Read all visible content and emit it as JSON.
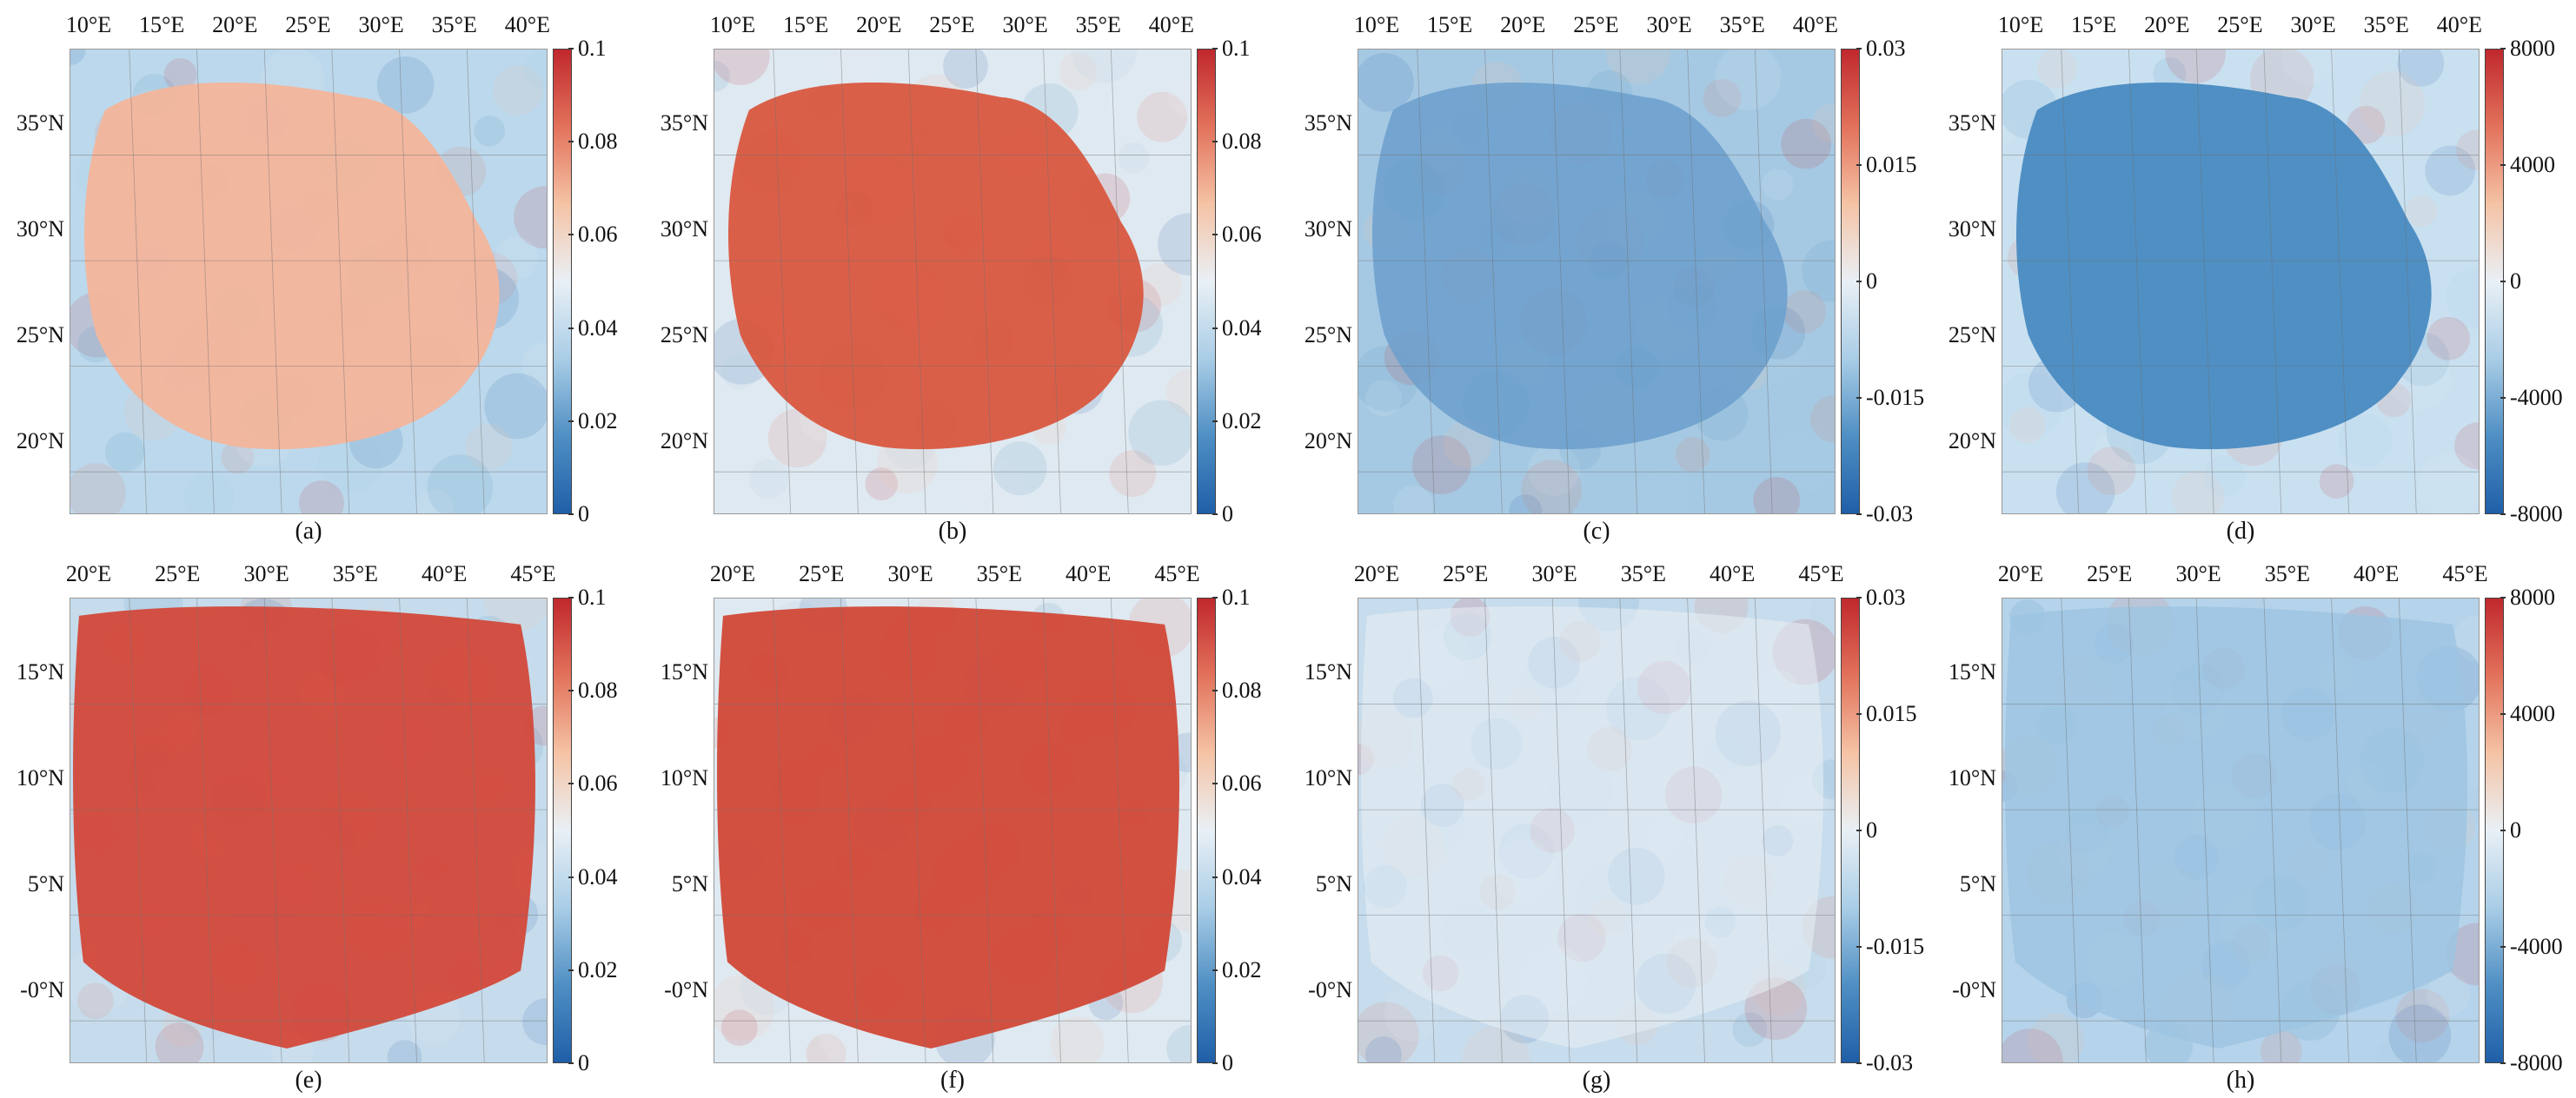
{
  "colormaps": {
    "diverging": [
      "#1f5fa8",
      "#4f8fc4",
      "#a9cde6",
      "#e9f0f6",
      "#f5c3a5",
      "#e2725b",
      "#c0282d"
    ]
  },
  "panels": [
    {
      "caption": "(a)",
      "x_ticks": [
        "10°E",
        "15°E",
        "20°E",
        "25°E",
        "30°E",
        "35°E",
        "40°E"
      ],
      "y_ticks": [
        "35°N",
        "30°N",
        "25°N",
        "20°N"
      ],
      "colorbar": [
        "0.1",
        "0.08",
        "0.06",
        "0.04",
        "0.02",
        "0"
      ],
      "style": {
        "background": "#bcd8ec",
        "blob": "#f3b59b",
        "blob_opacity": 0.95,
        "shape": "sea"
      }
    },
    {
      "caption": "(b)",
      "x_ticks": [
        "10°E",
        "15°E",
        "20°E",
        "25°E",
        "30°E",
        "35°E",
        "40°E"
      ],
      "y_ticks": [
        "35°N",
        "30°N",
        "25°N",
        "20°N"
      ],
      "colorbar": [
        "0.1",
        "0.08",
        "0.06",
        "0.04",
        "0.02",
        "0"
      ],
      "style": {
        "background": "#dfe9f1",
        "blob": "#d9573f",
        "blob_opacity": 0.95,
        "shape": "sea"
      }
    },
    {
      "caption": "(c)",
      "x_ticks": [
        "10°E",
        "15°E",
        "20°E",
        "25°E",
        "30°E",
        "35°E",
        "40°E"
      ],
      "y_ticks": [
        "35°N",
        "30°N",
        "25°N",
        "20°N"
      ],
      "colorbar": [
        "0.03",
        "0.015",
        "0",
        "-0.015",
        "-0.03"
      ],
      "style": {
        "background": "#a6c9e3",
        "blob": "#6b9fcd",
        "blob_opacity": 0.85,
        "shape": "sea"
      }
    },
    {
      "caption": "(d)",
      "x_ticks": [
        "10°E",
        "15°E",
        "20°E",
        "25°E",
        "30°E",
        "35°E",
        "40°E"
      ],
      "y_ticks": [
        "35°N",
        "30°N",
        "25°N",
        "20°N"
      ],
      "colorbar": [
        "8000",
        "4000",
        "0",
        "-4000",
        "-8000"
      ],
      "style": {
        "background": "#c9e0f0",
        "blob": "#4f8fc4",
        "blob_opacity": 1,
        "shape": "sea"
      }
    },
    {
      "caption": "(e)",
      "x_ticks": [
        "20°E",
        "25°E",
        "30°E",
        "35°E",
        "40°E",
        "45°E"
      ],
      "y_ticks": [
        "15°N",
        "10°N",
        "5°N",
        "-0°N"
      ],
      "colorbar": [
        "0.1",
        "0.08",
        "0.06",
        "0.04",
        "0.02",
        "0"
      ],
      "style": {
        "background": "#c6dcec",
        "blob": "#d3483a",
        "blob_opacity": 0.95,
        "shape": "wide"
      }
    },
    {
      "caption": "(f)",
      "x_ticks": [
        "20°E",
        "25°E",
        "30°E",
        "35°E",
        "40°E",
        "45°E"
      ],
      "y_ticks": [
        "15°N",
        "10°N",
        "5°N",
        "-0°N"
      ],
      "colorbar": [
        "0.1",
        "0.08",
        "0.06",
        "0.04",
        "0.02",
        "0"
      ],
      "style": {
        "background": "#dfe9f1",
        "blob": "#d24a3a",
        "blob_opacity": 0.97,
        "shape": "wide"
      }
    },
    {
      "caption": "(g)",
      "x_ticks": [
        "20°E",
        "25°E",
        "30°E",
        "35°E",
        "40°E",
        "45°E"
      ],
      "y_ticks": [
        "15°N",
        "10°N",
        "5°N",
        "-0°N"
      ],
      "colorbar": [
        "0.03",
        "0.015",
        "0",
        "-0.015",
        "-0.03"
      ],
      "style": {
        "background": "#c7dcec",
        "blob": "#e9f0f6",
        "blob_opacity": 0.55,
        "shape": "wide"
      }
    },
    {
      "caption": "(h)",
      "x_ticks": [
        "20°E",
        "25°E",
        "30°E",
        "35°E",
        "40°E",
        "45°E"
      ],
      "y_ticks": [
        "15°N",
        "10°N",
        "5°N",
        "-0°N"
      ],
      "colorbar": [
        "8000",
        "4000",
        "0",
        "-4000",
        "-8000"
      ],
      "style": {
        "background": "#b5d3ea",
        "blob": "#9cc4e2",
        "blob_opacity": 0.8,
        "shape": "wide"
      }
    }
  ]
}
